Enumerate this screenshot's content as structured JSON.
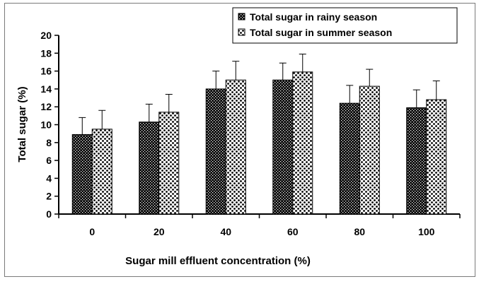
{
  "chart_data": {
    "type": "bar",
    "categories": [
      "0",
      "20",
      "40",
      "60",
      "80",
      "100"
    ],
    "series": [
      {
        "name": "Total sugar in rainy season",
        "values": [
          8.9,
          10.3,
          14.0,
          15.0,
          12.4,
          11.9
        ],
        "errors": [
          1.9,
          2.0,
          2.0,
          1.9,
          2.0,
          2.0
        ],
        "pattern": "dark-checker"
      },
      {
        "name": "Total sugar in summer season",
        "values": [
          9.5,
          11.4,
          15.0,
          15.9,
          14.3,
          12.8
        ],
        "errors": [
          2.1,
          2.0,
          2.1,
          2.0,
          1.9,
          2.1
        ],
        "pattern": "light-dots"
      }
    ],
    "xlabel": "Sugar mill effluent concentration (%)",
    "ylabel": "Total sugar (%)",
    "ylim": [
      0,
      20
    ],
    "yticks": [
      "0",
      "2",
      "4",
      "6",
      "8",
      "10",
      "12",
      "14",
      "16",
      "18",
      "20"
    ],
    "grid": false,
    "legend_position": "top-right",
    "error_bars": true
  }
}
